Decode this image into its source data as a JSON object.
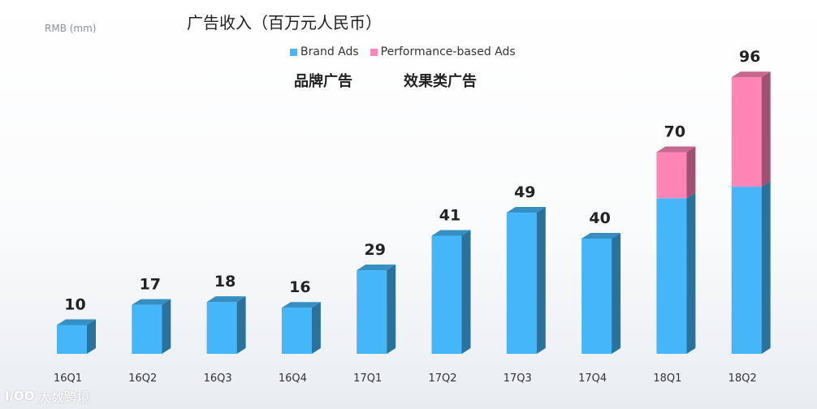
{
  "chart_data": {
    "type": "bar",
    "stacked": true,
    "title": "广告收入（百万元人民币）",
    "unit_label": "RMB (mm)",
    "categories": [
      "16Q1",
      "16Q2",
      "16Q3",
      "16Q4",
      "17Q1",
      "17Q2",
      "17Q3",
      "17Q4",
      "18Q1",
      "18Q2"
    ],
    "series": [
      {
        "name": "Brand Ads",
        "name_cn": "品牌广告",
        "color": "#45b7f9",
        "values": [
          10,
          17,
          18,
          16,
          29,
          41,
          49,
          40,
          54,
          58
        ]
      },
      {
        "name": "Performance-based Ads",
        "name_cn": "效果类广告",
        "color": "#ff85b7",
        "values": [
          0,
          0,
          0,
          0,
          0,
          0,
          0,
          0,
          16,
          38
        ]
      }
    ],
    "totals": [
      10,
      17,
      18,
      16,
      29,
      41,
      49,
      40,
      70,
      96
    ],
    "ylim": [
      0,
      100
    ],
    "grid": false,
    "legend_position": "top-center"
  },
  "watermark": {
    "logo": "I∕OO",
    "text": "大数跨境"
  }
}
